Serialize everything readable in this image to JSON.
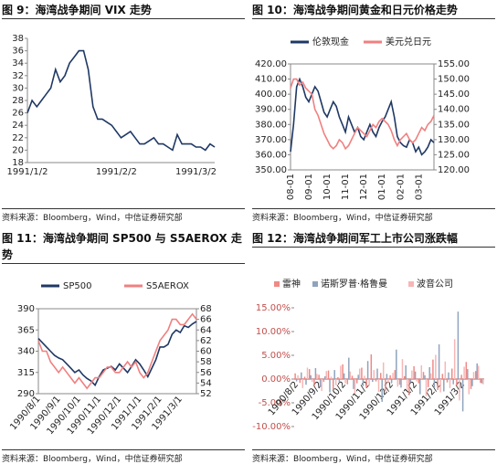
{
  "chart_data": [
    {
      "type": "line",
      "title": "图 9：海湾战争期间 VIX 走势",
      "source": "资料来源：Bloomberg，Wind，中信证券研究部",
      "categories": [
        "1991/1/2",
        null,
        null,
        null,
        null,
        null,
        null,
        null,
        null,
        null,
        null,
        null,
        null,
        null,
        null,
        null,
        null,
        null,
        null,
        "1991/2/2",
        null,
        null,
        null,
        null,
        null,
        null,
        null,
        null,
        null,
        null,
        null,
        null,
        null,
        null,
        null,
        null,
        "1991/3/2",
        null,
        null,
        null,
        null
      ],
      "series": [
        {
          "name": "VIX",
          "color": "#1f3864",
          "values": [
            26,
            28,
            27,
            28,
            29,
            30,
            33,
            31,
            32,
            34,
            35,
            36,
            36,
            33,
            27,
            25,
            25,
            24.5,
            24,
            23,
            22,
            22.5,
            23,
            22,
            21,
            21,
            21.5,
            22,
            21,
            21,
            20.5,
            20,
            22.5,
            21,
            21,
            21,
            20.5,
            20.5,
            20,
            21,
            20.5
          ]
        }
      ],
      "ylim": [
        18,
        38
      ],
      "yticks": [
        18,
        20,
        22,
        24,
        26,
        28,
        30,
        32,
        34,
        36,
        38
      ]
    },
    {
      "type": "line",
      "title": "图 10：海湾战争期间黄金和日元价格走势",
      "source": "资料来源：Bloomberg，Wind，中信证券研究部",
      "categories": [
        "08-01",
        null,
        null,
        null,
        null,
        null,
        "09-01",
        null,
        null,
        null,
        null,
        null,
        "10-01",
        null,
        null,
        null,
        null,
        null,
        "11-01",
        null,
        null,
        null,
        null,
        null,
        "12-01",
        null,
        null,
        null,
        null,
        null,
        "01-01",
        null,
        null,
        null,
        null,
        null,
        "02-01",
        null,
        null,
        null,
        null,
        null,
        "03-01",
        null,
        null,
        null,
        null,
        null
      ],
      "series": [
        {
          "name": "伦敦现金",
          "color": "#1f3864",
          "values": [
            362,
            380,
            405,
            410,
            405,
            398,
            395,
            400,
            405,
            402,
            395,
            388,
            385,
            390,
            395,
            392,
            385,
            380,
            375,
            385,
            380,
            375,
            378,
            372,
            370,
            375,
            380,
            375,
            372,
            378,
            382,
            385,
            390,
            395,
            385,
            372,
            368,
            366,
            365,
            370,
            368,
            362,
            365,
            360,
            362,
            365,
            370,
            368
          ]
        },
        {
          "name": "美元兑日元",
          "color": "#f08080",
          "axis": "y2",
          "values": [
            147,
            150,
            150,
            148,
            149,
            147,
            146,
            145,
            140,
            138,
            135,
            132,
            130,
            128,
            127,
            128,
            130,
            129,
            127,
            128,
            130,
            132,
            134,
            133,
            132,
            131,
            133,
            135,
            134,
            136,
            137,
            136,
            135,
            133,
            130,
            128,
            130,
            131,
            132,
            130,
            129,
            130,
            132,
            134,
            133,
            135,
            136,
            138
          ]
        }
      ],
      "ylim": [
        350,
        420
      ],
      "yticks": [
        {
          "value": 350,
          "label": "350.00"
        },
        {
          "value": 360,
          "label": "360.00"
        },
        {
          "value": 370,
          "label": "370.00"
        },
        {
          "value": 380,
          "label": "380.00"
        },
        {
          "value": 390,
          "label": "390.00"
        },
        {
          "value": 400,
          "label": "400.00"
        },
        {
          "value": 410,
          "label": "410.00"
        },
        {
          "value": 420,
          "label": "420.00"
        }
      ],
      "y2lim": [
        120,
        155
      ],
      "y2ticks": [
        {
          "value": 120,
          "label": "120.00"
        },
        {
          "value": 125,
          "label": "125.00"
        },
        {
          "value": 130,
          "label": "130.00"
        },
        {
          "value": 135,
          "label": "135.00"
        },
        {
          "value": 140,
          "label": "140.00"
        },
        {
          "value": 145,
          "label": "145.00"
        },
        {
          "value": 150,
          "label": "150.00"
        },
        {
          "value": 155,
          "label": "155.00"
        }
      ]
    },
    {
      "type": "line",
      "title": "图 11：海湾战争期间 SP500 与 S5AEROX 走势",
      "source": "资料来源：Bloomberg，Wind，中信证券研究部",
      "categories": [
        "1990/8/1",
        null,
        null,
        null,
        null,
        "1990/9/1",
        null,
        null,
        null,
        null,
        "1990/10/1",
        null,
        null,
        null,
        null,
        "1990/11/1",
        null,
        null,
        null,
        null,
        "1990/12/1",
        null,
        null,
        null,
        null,
        "1991/1/1",
        null,
        null,
        null,
        null,
        "1991/2/1",
        null,
        null,
        null,
        null,
        "1991/3/1",
        null,
        null,
        null,
        null
      ],
      "series": [
        {
          "name": "SP500",
          "color": "#1f3864",
          "values": [
            355,
            350,
            345,
            340,
            335,
            332,
            330,
            325,
            320,
            315,
            318,
            312,
            308,
            305,
            300,
            310,
            318,
            320,
            322,
            318,
            325,
            320,
            315,
            322,
            330,
            325,
            318,
            310,
            320,
            330,
            345,
            345,
            348,
            360,
            365,
            362,
            370,
            368,
            372,
            375
          ]
        },
        {
          "name": "S5AEROX",
          "color": "#f08080",
          "axis": "y2",
          "values": [
            62,
            60,
            60,
            58,
            57,
            56,
            57,
            56,
            55,
            54,
            55,
            54,
            53,
            54,
            55,
            55,
            56,
            57,
            57,
            56,
            56,
            57,
            58,
            57,
            58,
            56,
            55,
            56,
            58,
            60,
            62,
            63,
            64,
            66,
            66,
            65,
            65,
            66,
            67,
            66
          ]
        }
      ],
      "ylim": [
        290,
        390
      ],
      "yticks": [
        290,
        315,
        340,
        365,
        390
      ],
      "y2lim": [
        52,
        68
      ],
      "y2ticks": [
        52,
        54,
        56,
        58,
        60,
        62,
        64,
        66,
        68
      ]
    },
    {
      "type": "bar",
      "title": "图 12：海湾战争期间军工上市公司涨跌幅",
      "source": "资料来源：Bloomberg，Wind，中信证券研究部",
      "categories": [
        "1990/8/2",
        null,
        null,
        null,
        null,
        "1990/9/2",
        null,
        null,
        null,
        null,
        "1990/10/2",
        null,
        null,
        null,
        null,
        "1990/11/2",
        null,
        null,
        null,
        null,
        "1990/12/2",
        null,
        null,
        null,
        null,
        "1991/1/2",
        null,
        null,
        null,
        null,
        "1991/2/2",
        null,
        null,
        null,
        null,
        "1991/3/2",
        null,
        null,
        null,
        null
      ],
      "series": [
        {
          "name": "雷神",
          "color": "#ee8a85",
          "values": [
            1.2,
            -0.8,
            0.5,
            2.1,
            -1.5,
            0.9,
            -0.6,
            1.8,
            -2.2,
            0.4,
            3.1,
            -1.1,
            0.7,
            -0.9,
            2.4,
            -1.8,
            5.2,
            -0.5,
            1.3,
            -2.6,
            0.8,
            1.9,
            -1.2,
            0.6,
            -3.4,
            2.7,
            -0.9,
            1.5,
            -1.7,
            4.1,
            -2.3,
            1.1,
            -0.7,
            2.2,
            -1.4,
            0.9,
            3.6,
            -2.1,
            1.7,
            -0.8
          ]
        },
        {
          "name": "诺斯罗普·格鲁曼",
          "color": "#8fa3bd",
          "values": [
            -0.5,
            1.4,
            -1.2,
            0.8,
            2.3,
            -1.7,
            0.6,
            -2.8,
            1.9,
            -0.7,
            1.2,
            4.5,
            -2.1,
            0.9,
            -1.5,
            3.8,
            -0.6,
            2.2,
            -4.8,
            1.1,
            -0.9,
            6.2,
            -1.8,
            2.9,
            -0.7,
            1.6,
            -3.2,
            0.8,
            2.5,
            -1.9,
            7.3,
            -2.6,
            1.4,
            -1.1,
            14.2,
            -6.8,
            2.1,
            -1.5,
            3.3,
            -0.9
          ]
        },
        {
          "name": "波音公司",
          "color": "#f7b6b6",
          "values": [
            0.8,
            -1.9,
            2.4,
            -0.6,
            1.1,
            -2.5,
            1.7,
            0.5,
            -1.3,
            2.8,
            -0.9,
            1.6,
            -3.1,
            2.2,
            0.7,
            -1.4,
            1.9,
            -2.7,
            3.5,
            -0.8,
            1.3,
            -1.6,
            4.2,
            -2.3,
            1.8,
            -0.5,
            2.9,
            -3.6,
            1.2,
            5.1,
            -2.8,
            3.7,
            -1.9,
            8.4,
            -4.5,
            2.6,
            -3.2,
            1.5,
            2.8,
            -1.1
          ]
        }
      ],
      "ylim": [
        -10,
        15
      ],
      "yticks": [
        {
          "value": -10,
          "label": "-10.00%"
        },
        {
          "value": -5,
          "label": "-5.00%"
        },
        {
          "value": 0,
          "label": "0.00%"
        },
        {
          "value": 5,
          "label": "5.00%"
        },
        {
          "value": 10,
          "label": "10.00%"
        },
        {
          "value": 15,
          "label": "15.00%"
        }
      ]
    }
  ]
}
